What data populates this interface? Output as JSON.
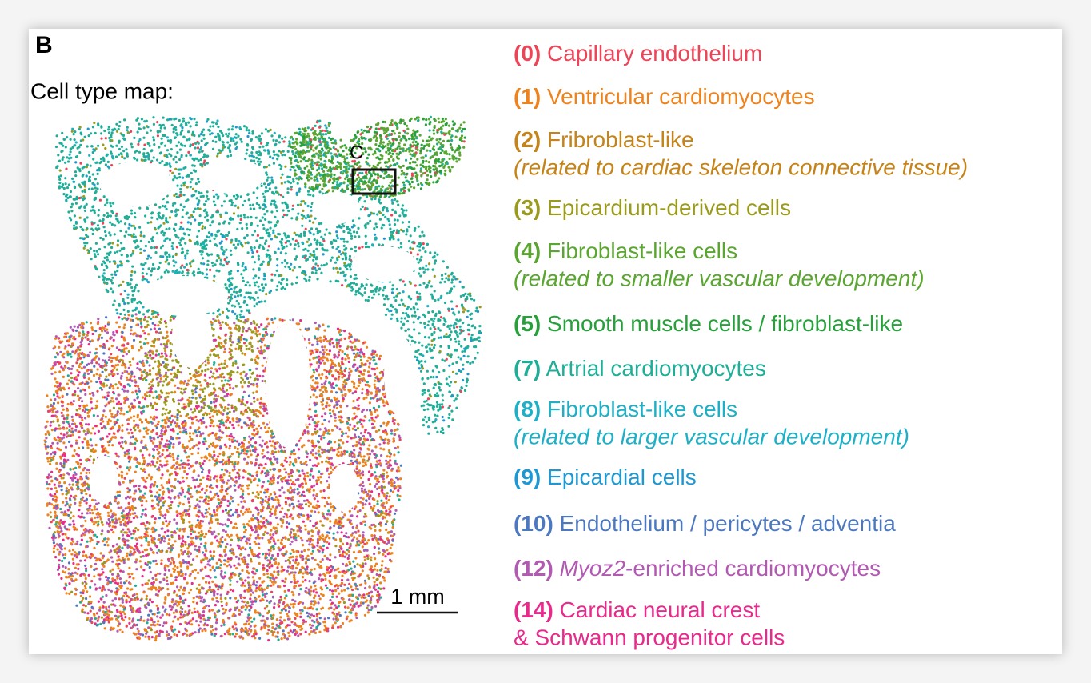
{
  "panel_label": "B",
  "map_title": "Cell type map:",
  "inset_label": "C",
  "scale_bar": "1 mm",
  "legend": [
    {
      "id": "(0)",
      "label": "Capillary endothelium",
      "color": "#ee4458"
    },
    {
      "id": "(1)",
      "label": "Ventricular cardiomyocytes",
      "color": "#ee821c"
    },
    {
      "id": "(2)",
      "label": "Fribroblast-like",
      "note": "(related to cardiac skeleton connective tissue)",
      "color": "#c58419"
    },
    {
      "id": "(3)",
      "label": "Epicardium-derived cells",
      "color": "#9a9a1c"
    },
    {
      "id": "(4)",
      "label": "Fibroblast-like cells",
      "note": "(related to smaller vascular development)",
      "color": "#5aa630"
    },
    {
      "id": "(5)",
      "label": "Smooth muscle cells / fibroblast-like",
      "color": "#27a03c"
    },
    {
      "id": "(7)",
      "label": "Artrial cardiomyocytes",
      "color": "#1fae98"
    },
    {
      "id": "(8)",
      "label": "Fibroblast-like cells",
      "note": "(related to larger vascular development)",
      "color": "#1eb0c6"
    },
    {
      "id": "(9)",
      "label": "Epicardial cells",
      "color": "#1e98d2"
    },
    {
      "id": "(10)",
      "label": "Endothelium / pericytes / adventia",
      "color": "#4c78c0"
    },
    {
      "id": "(12)",
      "italic": "Myoz2",
      "label": "-enriched cardiomyocytes",
      "color": "#b25ab2"
    },
    {
      "id": "(14)",
      "label": "Cardiac neural crest",
      "note": "& Schwann progenitor cells",
      "color": "#e82a8c"
    }
  ]
}
